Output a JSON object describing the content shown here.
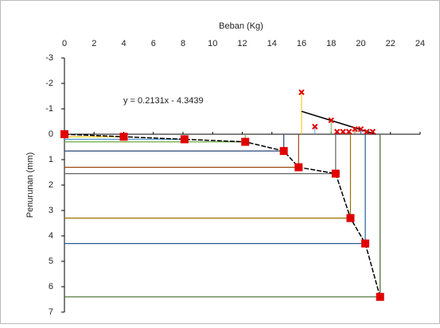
{
  "chart_data": {
    "type": "scatter",
    "x_label": "Beban (Kg)",
    "y_label": "Penurunan (mm)",
    "annotation": "y = 0.2131x - 4.3439",
    "xlim": [
      0,
      24
    ],
    "xticks": [
      0,
      2,
      4,
      6,
      8,
      10,
      12,
      14,
      16,
      18,
      20,
      22,
      24
    ],
    "ylim": [
      -3,
      7
    ],
    "yticks": [
      -3,
      -2,
      -1,
      0,
      1,
      2,
      3,
      4,
      5,
      6,
      7
    ],
    "y_reversed": true,
    "series": [
      {
        "marker": "square",
        "color": "#e00000",
        "line_color": "#000000",
        "x": [
          0,
          4,
          8.1,
          12.2,
          14.8,
          15.8,
          18.3,
          19.3,
          20.3,
          21.3
        ],
        "y": [
          0,
          0.1,
          0.2,
          0.3,
          0.66,
          1.3,
          1.55,
          3.3,
          4.3,
          6.4
        ]
      },
      {
        "marker": "cross",
        "color": "#e00000",
        "x": [
          16,
          16.9,
          18,
          18.4,
          18.8,
          19.2,
          19.6,
          20,
          20.4,
          20.8
        ],
        "y": [
          -1.65,
          -0.3,
          -0.55,
          -0.1,
          -0.1,
          -0.1,
          -0.2,
          -0.2,
          -0.1,
          -0.1
        ]
      }
    ],
    "trend_line": {
      "x": [
        16,
        21
      ],
      "y": [
        -0.9,
        0
      ],
      "color": "#000000"
    },
    "guide_colors": [
      "#a5a5a5",
      "#ffc000",
      "#5b9bd5",
      "#70ad47",
      "#264478",
      "#9e480e",
      "#636363",
      "#997300",
      "#255e91",
      "#43682b"
    ]
  }
}
